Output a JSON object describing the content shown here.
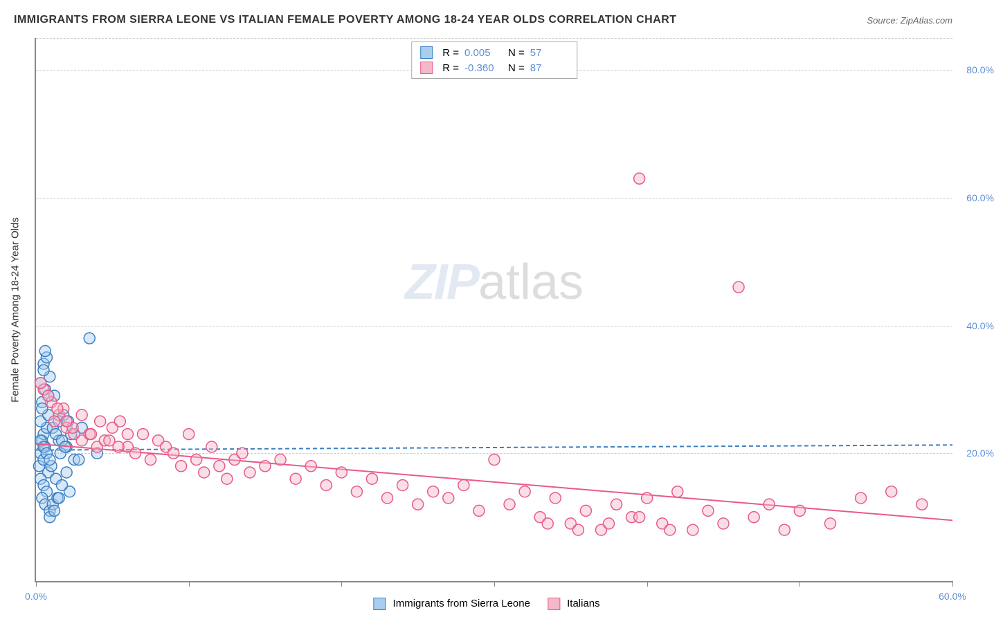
{
  "title": "IMMIGRANTS FROM SIERRA LEONE VS ITALIAN FEMALE POVERTY AMONG 18-24 YEAR OLDS CORRELATION CHART",
  "source": "Source: ZipAtlas.com",
  "ylabel": "Female Poverty Among 18-24 Year Olds",
  "watermark_bold": "ZIP",
  "watermark_light": "atlas",
  "chart": {
    "type": "scatter",
    "xlim": [
      0,
      60
    ],
    "ylim": [
      0,
      85
    ],
    "xticks": [
      0,
      10,
      20,
      30,
      40,
      50,
      60
    ],
    "xtick_labels": [
      "0.0%",
      "",
      "",
      "",
      "",
      "",
      "60.0%"
    ],
    "yticks": [
      20,
      40,
      60,
      80
    ],
    "ytick_labels": [
      "20.0%",
      "40.0%",
      "60.0%",
      "80.0%"
    ],
    "gridline_color": "#e0e0e0",
    "axis_color": "#888888",
    "background_color": "#ffffff",
    "tick_label_color": "#5b8fd6",
    "marker_radius": 8,
    "marker_stroke_width": 1.5,
    "trendline_width": 2
  },
  "series": [
    {
      "name": "Immigrants from Sierra Leone",
      "fill": "#a8cdee",
      "stroke": "#3b7fc4",
      "fill_opacity": 0.45,
      "r_value": "0.005",
      "n_value": "57",
      "trendline": {
        "x1": 0,
        "y1": 20.5,
        "x2": 60,
        "y2": 21.3,
        "dash": "6 4",
        "color": "#3b7fc4"
      },
      "points": [
        [
          0.2,
          18
        ],
        [
          0.3,
          20
        ],
        [
          0.5,
          19
        ],
        [
          0.4,
          22
        ],
        [
          0.6,
          21
        ],
        [
          0.8,
          17
        ],
        [
          0.3,
          16
        ],
        [
          0.5,
          15
        ],
        [
          0.7,
          14
        ],
        [
          0.4,
          13
        ],
        [
          0.6,
          12
        ],
        [
          0.9,
          11
        ],
        [
          0.5,
          23
        ],
        [
          0.7,
          24
        ],
        [
          0.3,
          25
        ],
        [
          0.8,
          26
        ],
        [
          0.4,
          28
        ],
        [
          0.6,
          30
        ],
        [
          0.9,
          32
        ],
        [
          0.5,
          34
        ],
        [
          1.5,
          22
        ],
        [
          2.0,
          21
        ],
        [
          2.5,
          19
        ],
        [
          3.0,
          24
        ],
        [
          1.2,
          29
        ],
        [
          1.8,
          26
        ],
        [
          2.2,
          14
        ],
        [
          0.3,
          31
        ],
        [
          0.5,
          33
        ],
        [
          0.7,
          35
        ],
        [
          1.0,
          18
        ],
        [
          1.3,
          16
        ],
        [
          1.6,
          20
        ],
        [
          0.4,
          27
        ],
        [
          0.8,
          29
        ],
        [
          1.1,
          12
        ],
        [
          1.4,
          13
        ],
        [
          1.7,
          15
        ],
        [
          2.0,
          17
        ],
        [
          0.6,
          36
        ],
        [
          3.5,
          38
        ],
        [
          0.9,
          10
        ],
        [
          1.2,
          11
        ],
        [
          1.5,
          13
        ],
        [
          0.3,
          22
        ],
        [
          0.5,
          21
        ],
        [
          0.7,
          20
        ],
        [
          0.9,
          19
        ],
        [
          1.1,
          24
        ],
        [
          1.3,
          23
        ],
        [
          1.5,
          25
        ],
        [
          1.7,
          22
        ],
        [
          1.9,
          21
        ],
        [
          2.1,
          25
        ],
        [
          2.3,
          23
        ],
        [
          2.8,
          19
        ],
        [
          4.0,
          20
        ]
      ]
    },
    {
      "name": "Italians",
      "fill": "#f5b8c8",
      "stroke": "#e85a8a",
      "fill_opacity": 0.45,
      "r_value": "-0.360",
      "n_value": "87",
      "trendline": {
        "x1": 0,
        "y1": 21.5,
        "x2": 60,
        "y2": 9.5,
        "dash": "0",
        "color": "#e85a8a"
      },
      "points": [
        [
          0.5,
          30
        ],
        [
          1.0,
          28
        ],
        [
          1.5,
          26
        ],
        [
          2.0,
          24
        ],
        [
          2.5,
          23
        ],
        [
          3.0,
          22
        ],
        [
          3.5,
          23
        ],
        [
          4.0,
          21
        ],
        [
          4.5,
          22
        ],
        [
          5.0,
          24
        ],
        [
          5.5,
          25
        ],
        [
          6.0,
          21
        ],
        [
          6.5,
          20
        ],
        [
          7.0,
          23
        ],
        [
          7.5,
          19
        ],
        [
          8.0,
          22
        ],
        [
          8.5,
          21
        ],
        [
          9.0,
          20
        ],
        [
          9.5,
          18
        ],
        [
          10.0,
          23
        ],
        [
          10.5,
          19
        ],
        [
          11.0,
          17
        ],
        [
          11.5,
          21
        ],
        [
          12.0,
          18
        ],
        [
          12.5,
          16
        ],
        [
          13.0,
          19
        ],
        [
          13.5,
          20
        ],
        [
          14.0,
          17
        ],
        [
          15.0,
          18
        ],
        [
          16.0,
          19
        ],
        [
          17.0,
          16
        ],
        [
          18.0,
          18
        ],
        [
          19.0,
          15
        ],
        [
          20.0,
          17
        ],
        [
          21.0,
          14
        ],
        [
          22.0,
          16
        ],
        [
          23.0,
          13
        ],
        [
          24.0,
          15
        ],
        [
          25.0,
          12
        ],
        [
          26.0,
          14
        ],
        [
          27.0,
          13
        ],
        [
          28.0,
          15
        ],
        [
          29.0,
          11
        ],
        [
          30.0,
          19
        ],
        [
          31.0,
          12
        ],
        [
          32.0,
          14
        ],
        [
          33.0,
          10
        ],
        [
          34.0,
          13
        ],
        [
          35.0,
          9
        ],
        [
          36.0,
          11
        ],
        [
          37.0,
          8
        ],
        [
          38.0,
          12
        ],
        [
          39.0,
          10
        ],
        [
          40.0,
          13
        ],
        [
          41.0,
          9
        ],
        [
          42.0,
          14
        ],
        [
          43.0,
          8
        ],
        [
          44.0,
          11
        ],
        [
          45.0,
          9
        ],
        [
          46.0,
          46
        ],
        [
          47.0,
          10
        ],
        [
          48.0,
          12
        ],
        [
          49.0,
          8
        ],
        [
          50.0,
          11
        ],
        [
          52.0,
          9
        ],
        [
          54.0,
          13
        ],
        [
          56.0,
          14
        ],
        [
          58.0,
          12
        ],
        [
          1.2,
          25
        ],
        [
          1.8,
          27
        ],
        [
          2.4,
          24
        ],
        [
          3.0,
          26
        ],
        [
          3.6,
          23
        ],
        [
          4.2,
          25
        ],
        [
          4.8,
          22
        ],
        [
          5.4,
          21
        ],
        [
          6.0,
          23
        ],
        [
          0.8,
          29
        ],
        [
          1.4,
          27
        ],
        [
          2.0,
          25
        ],
        [
          0.3,
          31
        ],
        [
          39.5,
          63
        ],
        [
          33.5,
          9
        ],
        [
          35.5,
          8
        ],
        [
          37.5,
          9
        ],
        [
          39.5,
          10
        ],
        [
          41.5,
          8
        ]
      ]
    }
  ],
  "legend": {
    "series1_label": "Immigrants from Sierra Leone",
    "series2_label": "Italians"
  },
  "stats_box": {
    "r_label": "R  =",
    "n_label": "N  ="
  }
}
